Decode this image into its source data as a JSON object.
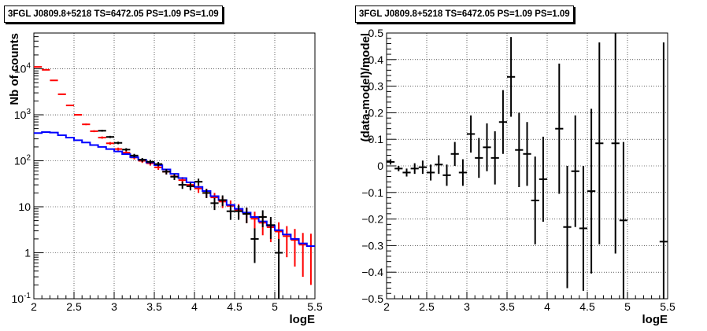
{
  "chart_data": [
    {
      "type": "scatter",
      "title": "3FGL J0809.8+5218 TS=6472.05 PS=1.09 PS=1.09",
      "xlabel": "logE",
      "ylabel": "Nb of counts",
      "xlim": [
        2,
        5.5
      ],
      "ylim": [
        0.1,
        60000
      ],
      "yscale": "log",
      "grid": true,
      "xticks": [
        "2",
        "2.5",
        "3",
        "3.5",
        "4",
        "4.5",
        "5",
        "5.5"
      ],
      "yticks": [
        {
          "base": "10",
          "exp": "-1"
        },
        {
          "base": "1",
          "exp": ""
        },
        {
          "base": "10",
          "exp": ""
        },
        {
          "base": "10",
          "exp": "2"
        },
        {
          "base": "10",
          "exp": "3"
        },
        {
          "base": "10",
          "exp": "4"
        }
      ],
      "series": [
        {
          "role": "model_total",
          "color": "#ff0000",
          "x": [
            2.05,
            2.15,
            2.25,
            2.35,
            2.45,
            2.55,
            2.65,
            2.75,
            2.85,
            2.95,
            3.05,
            3.15,
            3.25,
            3.35,
            3.45,
            3.55,
            3.65,
            3.75,
            3.85,
            3.95,
            4.05,
            4.15,
            4.25,
            4.35,
            4.45,
            4.55,
            4.65,
            4.75,
            4.85,
            4.95,
            5.05,
            5.15,
            5.25,
            5.35,
            5.45
          ],
          "y": [
            11000,
            9500,
            5600,
            2800,
            1600,
            1000,
            620,
            440,
            320,
            240,
            180,
            150,
            118,
            100,
            88,
            72,
            58,
            46,
            38,
            30,
            25,
            20,
            16,
            13,
            10.5,
            8.5,
            7,
            5.5,
            4.5,
            3.6,
            2.9,
            2.3,
            1.9,
            1.5,
            1.4
          ],
          "err": [
            105,
            97,
            75,
            53,
            40,
            32,
            25,
            21,
            18,
            15.5,
            13.4,
            12.2,
            10.9,
            10,
            9.4,
            8.5,
            7.6,
            6.8,
            6.2,
            5.5,
            5,
            4.5,
            4,
            3.6,
            3.2,
            2.9,
            2.6,
            2.3,
            2.1,
            1.9,
            1.7,
            1.5,
            1.4,
            1.2,
            1.2
          ]
        },
        {
          "role": "source_model",
          "color": "#0000ff",
          "x": [
            2.0,
            2.1,
            2.2,
            2.3,
            2.4,
            2.5,
            2.6,
            2.7,
            2.8,
            2.9,
            3.0,
            3.1,
            3.2,
            3.3,
            3.4,
            3.5,
            3.6,
            3.7,
            3.8,
            3.9,
            4.0,
            4.1,
            4.2,
            4.3,
            4.4,
            4.5,
            4.6,
            4.7,
            4.8,
            4.9,
            5.0,
            5.1,
            5.2,
            5.3,
            5.4,
            5.5
          ],
          "y": [
            400,
            420,
            410,
            360,
            320,
            280,
            250,
            220,
            200,
            180,
            160,
            140,
            120,
            105,
            92,
            80,
            65,
            52,
            42,
            34,
            27,
            22,
            17,
            14,
            11,
            9,
            7.5,
            6,
            4.8,
            3.9,
            3.1,
            2.5,
            2,
            1.6,
            1.4,
            1.4
          ]
        },
        {
          "role": "data",
          "color": "#000000",
          "x": [
            2.85,
            2.95,
            3.05,
            3.15,
            3.25,
            3.35,
            3.45,
            3.55,
            3.65,
            3.75,
            3.85,
            3.95,
            4.05,
            4.15,
            4.25,
            4.35,
            4.45,
            4.55,
            4.65,
            4.75,
            4.85,
            4.95,
            5.05
          ],
          "y": [
            450,
            330,
            245,
            175,
            130,
            105,
            95,
            85,
            58,
            45,
            30,
            28,
            35,
            20,
            12,
            14,
            8,
            8,
            7,
            2,
            6,
            4,
            1
          ],
          "err": [
            21,
            18,
            15.6,
            13.2,
            11.4,
            10.2,
            9.7,
            9.2,
            7.6,
            6.7,
            5.5,
            5.3,
            5.9,
            4.5,
            3.5,
            3.7,
            2.8,
            2.8,
            2.6,
            1.4,
            2.4,
            2,
            1
          ]
        }
      ]
    },
    {
      "type": "scatter",
      "title": "3FGL J0809.8+5218 TS=6472.05 PS=1.09 PS=1.09",
      "xlabel": "logE",
      "ylabel": "(data-model)/model",
      "xlim": [
        2,
        5.5
      ],
      "ylim": [
        -0.5,
        0.5
      ],
      "grid": true,
      "xticks": [
        "2",
        "2.5",
        "3",
        "3.5",
        "4",
        "4.5",
        "5",
        "5.5"
      ],
      "yticks": [
        "−0.5",
        "−0.4",
        "−0.3",
        "−0.2",
        "−0.1",
        "0",
        "0.1",
        "0.2",
        "0.3",
        "0.4",
        "0.5"
      ],
      "series": [
        {
          "role": "residual",
          "color": "#000000",
          "x": [
            2.05,
            2.15,
            2.25,
            2.35,
            2.45,
            2.55,
            2.65,
            2.75,
            2.85,
            2.95,
            3.05,
            3.15,
            3.25,
            3.35,
            3.45,
            3.55,
            3.65,
            3.75,
            3.85,
            3.95,
            4.15,
            4.25,
            4.35,
            4.45,
            4.55,
            4.65,
            4.85,
            4.95,
            5.45
          ],
          "y": [
            0.015,
            -0.01,
            -0.025,
            -0.01,
            -0.005,
            -0.025,
            0.005,
            -0.035,
            0.045,
            -0.025,
            0.12,
            0.03,
            0.07,
            0.03,
            0.165,
            0.335,
            0.06,
            0.045,
            -0.13,
            -0.05,
            0.14,
            -0.23,
            -0.02,
            -0.235,
            -0.095,
            0.085,
            0.085,
            -0.205,
            -0.285
          ],
          "err": [
            0.01,
            0.01,
            0.015,
            0.02,
            0.025,
            0.03,
            0.035,
            0.04,
            0.045,
            0.05,
            0.07,
            0.075,
            0.09,
            0.1,
            0.12,
            0.15,
            0.14,
            0.12,
            0.165,
            0.16,
            0.245,
            0.23,
            0.21,
            0.235,
            0.31,
            0.38,
            0.415,
            0.295,
            0.75
          ]
        }
      ]
    }
  ]
}
